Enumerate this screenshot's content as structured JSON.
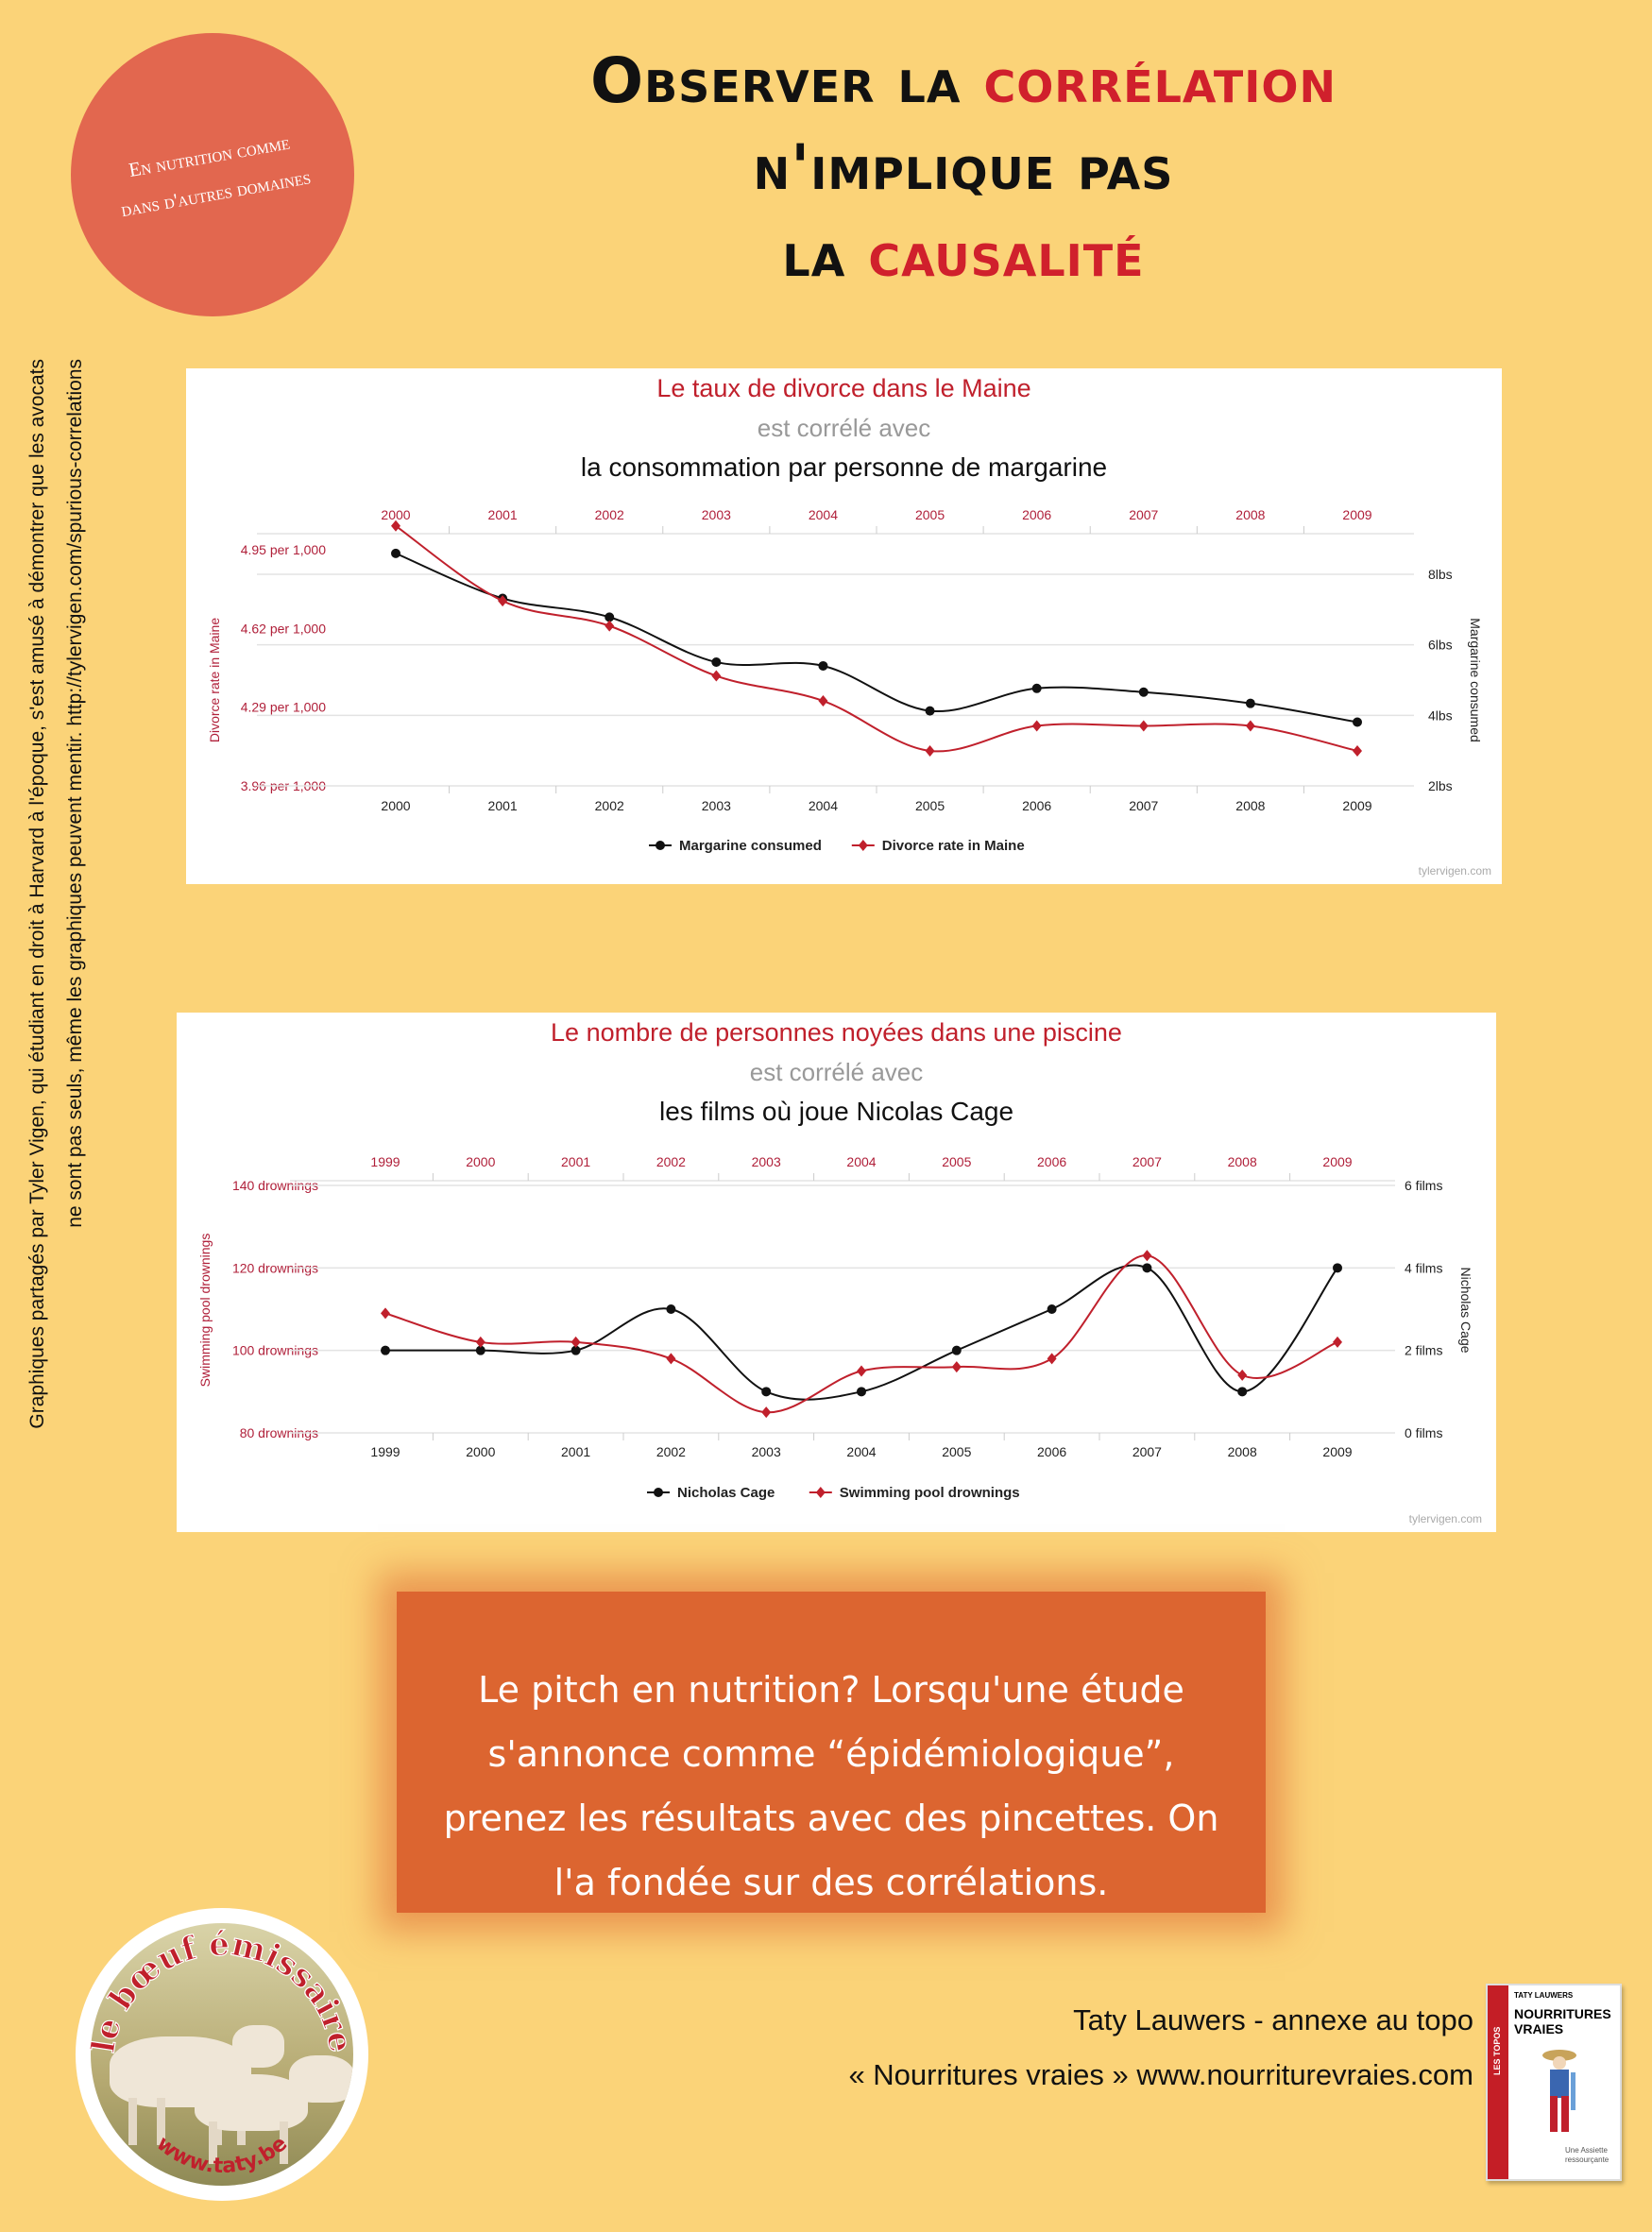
{
  "title": {
    "line1_black": "Observer la",
    "line1_red": "corrélation",
    "line2": "n'implique pas",
    "line3_black": "la",
    "line3_red": "causalité"
  },
  "badge": {
    "line1": "En nutrition comme",
    "line2": "dans d'autres domaines"
  },
  "side_note": {
    "line1": "Graphiques partagés par Tyler Vigen, qui étudiant en droit à Harvard à l'époque, s'est amusé à démontrer que les avocats",
    "line2": "ne sont pas seuls, même les graphiques peuvent mentir.  http://tylervigen.com/spurious-correlations"
  },
  "chart1_header": {
    "line1": "Le taux de divorce dans le Maine",
    "line2": "est corrélé avec",
    "line3": "la consommation par personne de margarine"
  },
  "chart2_header": {
    "line1": "Le nombre de personnes noyées dans une piscine",
    "line2": "est corrélé avec",
    "line3": "les films où joue Nicolas Cage"
  },
  "chart_data": [
    {
      "type": "line",
      "x": [
        "2000",
        "2001",
        "2002",
        "2003",
        "2004",
        "2005",
        "2006",
        "2007",
        "2008",
        "2009"
      ],
      "left_axis": {
        "label": "Divorce rate in Maine",
        "ticks": [
          "4.95 per 1,000",
          "4.62 per 1,000",
          "4.29 per 1,000",
          "3.96 per 1,000"
        ],
        "ylim": [
          3.96,
          4.95
        ]
      },
      "right_axis": {
        "label": "Margarine consumed",
        "ticks": [
          "8lbs",
          "6lbs",
          "4lbs",
          "2lbs"
        ],
        "ylim": [
          2,
          8.6
        ]
      },
      "series": [
        {
          "name": "Margarine consumed",
          "axis": "right",
          "color": "#111111",
          "values": [
            8.2,
            7.0,
            6.5,
            5.3,
            5.2,
            4.0,
            4.6,
            4.5,
            4.2,
            3.7
          ]
        },
        {
          "name": "Divorce rate in Maine",
          "axis": "left",
          "color": "#c0202c",
          "values": [
            5.0,
            4.7,
            4.6,
            4.4,
            4.3,
            4.1,
            4.2,
            4.2,
            4.2,
            4.1
          ]
        }
      ],
      "legend": "bottom",
      "watermark": "tylervigen.com"
    },
    {
      "type": "line",
      "x": [
        "1999",
        "2000",
        "2001",
        "2002",
        "2003",
        "2004",
        "2005",
        "2006",
        "2007",
        "2008",
        "2009"
      ],
      "left_axis": {
        "label": "Swimming pool drownings",
        "ticks": [
          "140 drownings",
          "120 drownings",
          "100 drownings",
          "80 drownings"
        ],
        "ylim": [
          80,
          140
        ]
      },
      "right_axis": {
        "label": "Nicholas Cage",
        "ticks": [
          "6 films",
          "4 films",
          "2 films",
          "0 films"
        ],
        "ylim": [
          0,
          6
        ]
      },
      "series": [
        {
          "name": "Nicholas Cage",
          "axis": "right",
          "color": "#111111",
          "values": [
            2,
            2,
            2,
            3,
            1,
            1,
            2,
            3,
            4,
            1,
            4
          ]
        },
        {
          "name": "Swimming pool drownings",
          "axis": "left",
          "color": "#c0202c",
          "values": [
            109,
            102,
            102,
            98,
            85,
            95,
            96,
            98,
            123,
            94,
            102
          ]
        }
      ],
      "legend": "bottom",
      "watermark": "tylervigen.com"
    }
  ],
  "pitch": {
    "line1": "Le pitch en nutrition? Lorsqu'une étude",
    "line2": "s'annonce comme “épidémiologique”,",
    "line3": "prenez les résultats avec des pincettes. On",
    "line4": "l'a fondée sur des corrélations."
  },
  "logo": {
    "top_text": "le bœuf émissaire",
    "bottom_text": "www.taty.be"
  },
  "footer": {
    "line1": "Taty Lauwers - annexe au topo",
    "line2": "« Nourritures vraies »   www.nourriturevraies.com"
  },
  "book": {
    "spine": "LES TOPOS",
    "author": "TATY LAUWERS",
    "title": "NOURRITURES VRAIES",
    "subtitle": "Une Assiette ressourçante"
  }
}
